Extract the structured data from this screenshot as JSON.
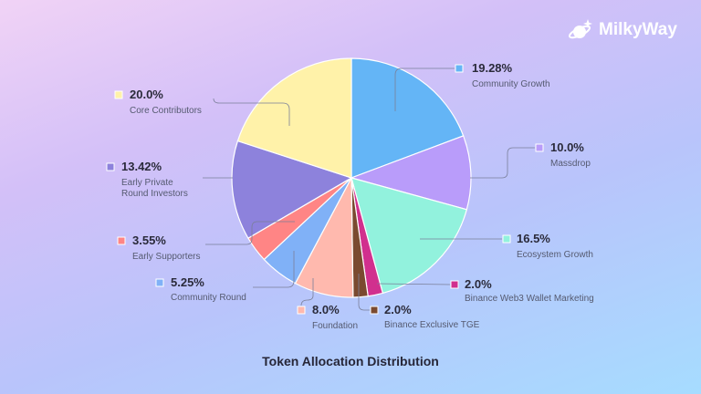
{
  "brand": {
    "name": "MilkyWay",
    "icon": "planet-sparkle-icon"
  },
  "chart_data": {
    "type": "pie",
    "title": "Token Allocation Distribution",
    "direction": "clockwise from top",
    "slices": [
      {
        "label": "Community Growth",
        "value": 19.28,
        "display": "19.28%",
        "color": "#64b5f6"
      },
      {
        "label": "Massdrop",
        "value": 10.0,
        "display": "10.0%",
        "color": "#b99cfa"
      },
      {
        "label": "Ecosystem Growth",
        "value": 16.5,
        "display": "16.5%",
        "color": "#92f2dd"
      },
      {
        "label": "Binance Web3 Wallet Marketing",
        "value": 2.0,
        "display": "2.0%",
        "color": "#d1308e"
      },
      {
        "label": "Binance Exclusive TGE",
        "value": 2.0,
        "display": "2.0%",
        "color": "#7a4a30"
      },
      {
        "label": "Foundation",
        "value": 8.0,
        "display": "8.0%",
        "color": "#ffb9ae"
      },
      {
        "label": "Community Round",
        "value": 5.25,
        "display": "5.25%",
        "color": "#80b1f7"
      },
      {
        "label": "Early Supporters",
        "value": 3.55,
        "display": "3.55%",
        "color": "#ff8585"
      },
      {
        "label": "Early Private Round Investors",
        "label_lines": [
          "Early Private",
          "Round Investors"
        ],
        "value": 13.42,
        "display": "13.42%",
        "color": "#8d82dc"
      },
      {
        "label": "Core Contributors",
        "value": 20.0,
        "display": "20.0%",
        "color": "#fff2a9"
      }
    ]
  }
}
